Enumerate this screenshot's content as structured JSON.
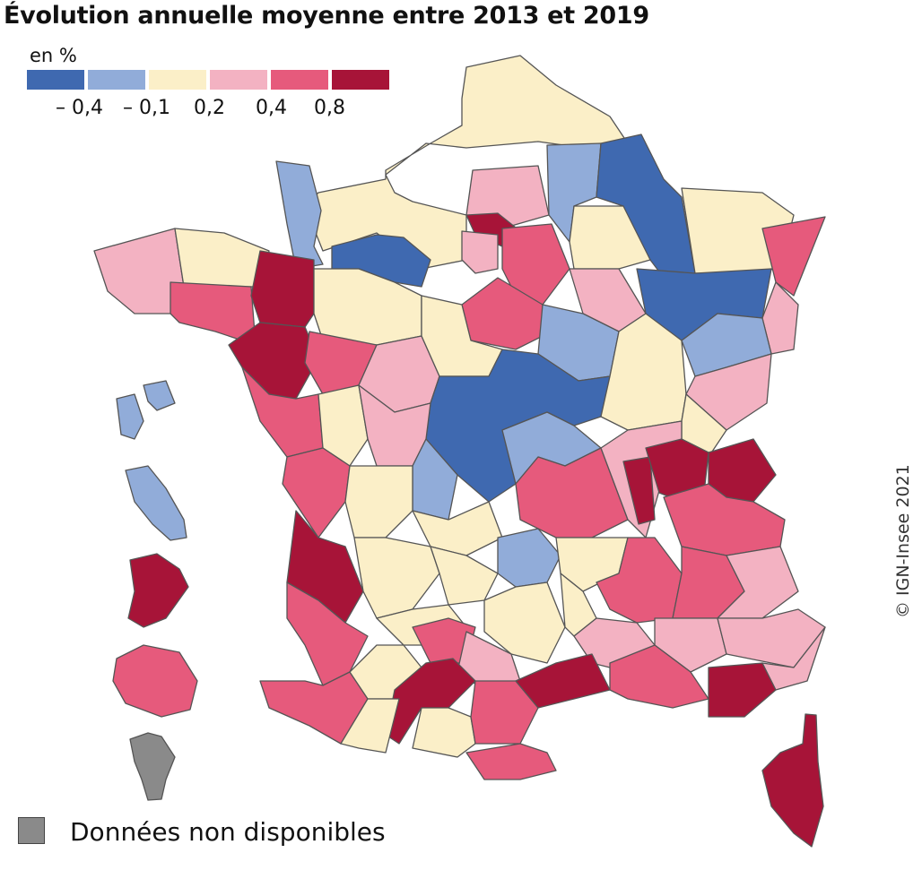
{
  "title": "Évolution annuelle moyenne entre 2013 et 2019",
  "legend": {
    "unit": "en %",
    "classes": [
      {
        "color": "#3f69b0"
      },
      {
        "color": "#91acd9"
      },
      {
        "color": "#fbefc8"
      },
      {
        "color": "#f3b2c2"
      },
      {
        "color": "#e65a7c"
      },
      {
        "color": "#a71438"
      }
    ],
    "ticks": [
      "– 0,4",
      "– 0,1",
      "0,2",
      "0,4",
      "0,8"
    ]
  },
  "no_data": {
    "label": "Données non disponibles",
    "color": "#8a8a8a"
  },
  "credit": "© IGN-Insee 2021"
}
